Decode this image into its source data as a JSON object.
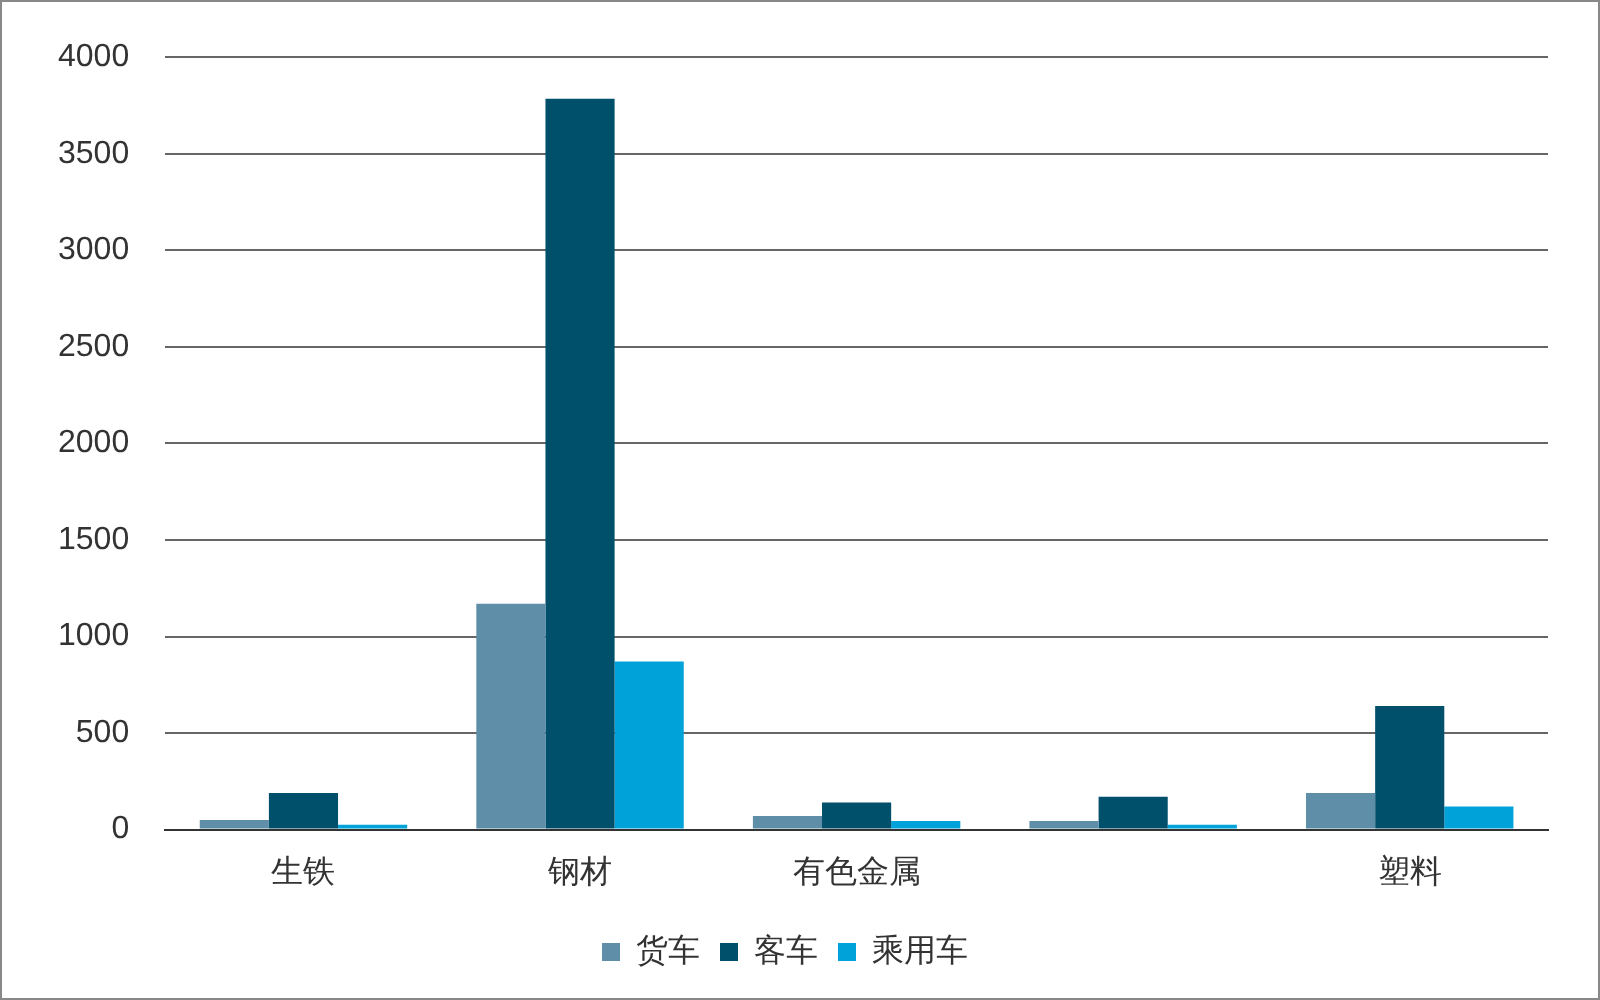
{
  "chart_data": {
    "type": "bar",
    "categories": [
      "生铁",
      "钢材",
      "有色金属",
      null,
      "塑料"
    ],
    "series": [
      {
        "name": "货车",
        "color": "#5f8fa8",
        "values": [
          50,
          1170,
          70,
          45,
          190
        ]
      },
      {
        "name": "客车",
        "color": "#004f6b",
        "values": [
          190,
          3785,
          140,
          170,
          640
        ]
      },
      {
        "name": "乘用车",
        "color": "#00a3d9",
        "values": [
          25,
          870,
          45,
          25,
          120
        ]
      }
    ],
    "ylim": [
      0,
      4000
    ],
    "yticks": [
      0,
      500,
      1000,
      1500,
      2000,
      2500,
      3000,
      3500,
      4000
    ],
    "grid": "y",
    "legend": "bottom"
  }
}
